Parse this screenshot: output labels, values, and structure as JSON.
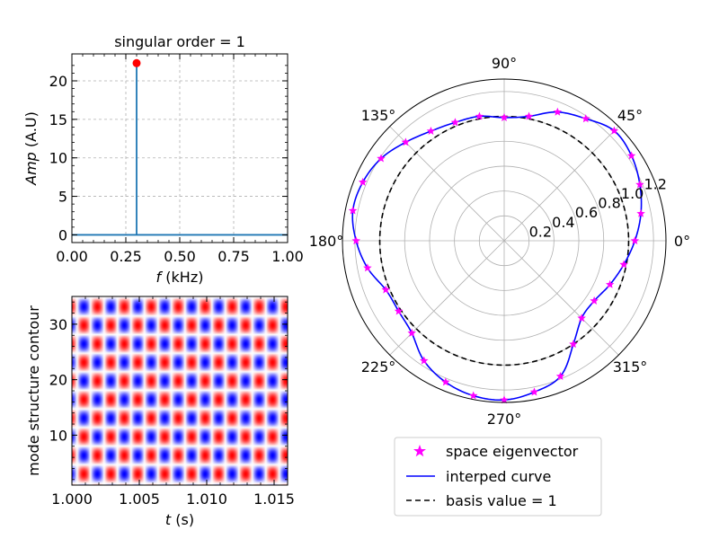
{
  "chart_data": [
    {
      "type": "line",
      "title": "singular order = 1",
      "xlabel_var": "f",
      "xlabel_unit": " (kHz)",
      "ylabel_var": "Amp",
      "ylabel_unit": " (A.U)",
      "xlim": [
        0.0,
        1.0
      ],
      "ylim": [
        -1.0,
        23.5
      ],
      "grid": true,
      "xticks": [
        0.0,
        0.25,
        0.5,
        0.75,
        1.0
      ],
      "xtick_labels": [
        "0.00",
        "0.25",
        "0.50",
        "0.75",
        "1.00"
      ],
      "yticks": [
        0,
        5,
        10,
        15,
        20
      ],
      "ytick_labels": [
        "0",
        "5",
        "10",
        "15",
        "20"
      ],
      "series": [
        {
          "color": "#1f77b4",
          "x": [
            0.0,
            0.3,
            0.3,
            0.3,
            1.0
          ],
          "y": [
            0.0,
            0.0,
            22.3,
            0.0,
            0.0
          ]
        }
      ],
      "peak": {
        "x": 0.3,
        "y": 22.3,
        "color": "#ff0000"
      }
    },
    {
      "type": "heatmap",
      "xlabel_var": "t",
      "xlabel_unit": " (s)",
      "ylabel": "mode structure contour",
      "xlim": [
        1.0,
        1.016
      ],
      "ylim": [
        1,
        35
      ],
      "xticks": [
        1.0,
        1.005,
        1.01,
        1.015
      ],
      "xtick_labels": [
        "1.000",
        "1.005",
        "1.010",
        "1.015"
      ],
      "yticks": [
        10,
        20,
        30
      ],
      "ytick_labels": [
        "10",
        "20",
        "30"
      ],
      "colormap": "bwr",
      "colors": {
        "positive": "#ff0000",
        "negative": "#0000ff",
        "zero": "#ffffff"
      },
      "pattern": {
        "time_period_s": 0.002,
        "spatial_period": 6.7,
        "blob_columns": 16,
        "blob_rows": 10
      }
    },
    {
      "type": "polar",
      "rlim": [
        0,
        1.3
      ],
      "rticks": [
        0.2,
        0.4,
        0.6,
        0.8,
        1.0,
        1.2
      ],
      "rtick_labels": [
        "0.2",
        "0.4",
        "0.6",
        "0.8",
        "1.0",
        "1.2"
      ],
      "theta_tick_labels": [
        "0°",
        "45°",
        "90°",
        "135°",
        "180°",
        "225°",
        "270°",
        "315°"
      ],
      "basis_value": 1.0,
      "eigenvector_theta_deg": [
        0,
        11.25,
        22.5,
        33.75,
        45,
        56.25,
        67.5,
        78.75,
        90,
        101.25,
        112.5,
        123.75,
        135,
        146.25,
        157.5,
        168.75,
        180,
        191.25,
        202.5,
        213.75,
        225,
        236.25,
        247.5,
        258.75,
        270,
        281.25,
        292.5,
        303.75,
        315,
        326.25,
        337.5,
        348.75
      ],
      "eigenvector_r": [
        1.05,
        1.12,
        1.18,
        1.23,
        1.25,
        1.18,
        1.12,
        1.02,
        0.99,
        1.02,
        1.03,
        1.06,
        1.12,
        1.19,
        1.23,
        1.24,
        1.19,
        1.12,
        1.03,
        1.02,
        1.05,
        1.16,
        1.23,
        1.27,
        1.28,
        1.24,
        1.18,
        1.0,
        0.88,
        0.87,
        0.92,
        0.98
      ],
      "colors": {
        "eigenvector": "#ff00ff",
        "interped": "#0000ff",
        "basis": "#000000"
      },
      "legend": {
        "position": "lower-center",
        "entries": [
          "space eigenvector",
          "interped curve",
          "basis value = 1"
        ]
      }
    }
  ]
}
